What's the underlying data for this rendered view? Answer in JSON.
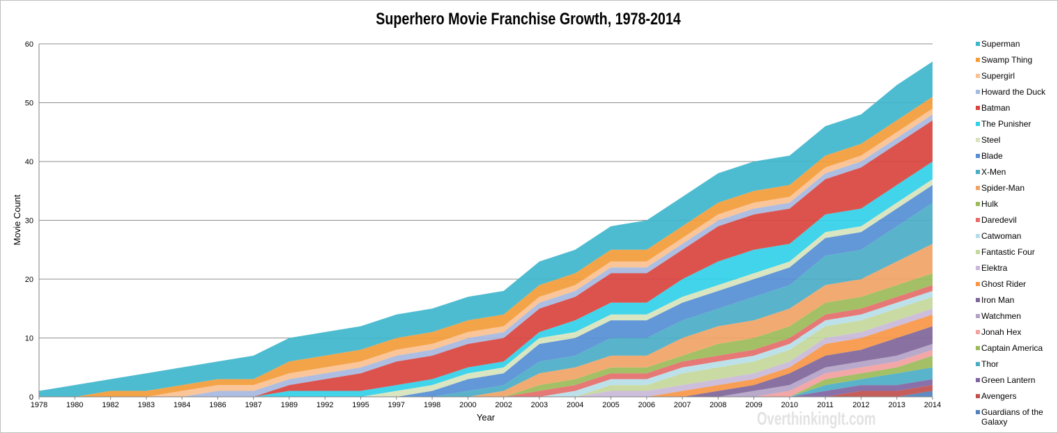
{
  "chart_data": {
    "type": "area",
    "stacked": true,
    "title": "Superhero Movie Franchise Growth, 1978-2014",
    "xlabel": "Year",
    "ylabel": "Movie Count",
    "ylim": [
      0,
      60
    ],
    "yticks": [
      "0",
      "10",
      "20",
      "30",
      "40",
      "50",
      "60"
    ],
    "grid": "horizontal",
    "legend_position": "right",
    "categories": [
      "1978",
      "1980",
      "1982",
      "1983",
      "1984",
      "1986",
      "1987",
      "1989",
      "1992",
      "1995",
      "1997",
      "1998",
      "2000",
      "2002",
      "2003",
      "2004",
      "2005",
      "2006",
      "2007",
      "2008",
      "2009",
      "2010",
      "2011",
      "2012",
      "2013",
      "2014"
    ],
    "series": [
      {
        "name": "Guardians of the Galaxy",
        "color": "#4f81bd",
        "values": [
          0,
          0,
          0,
          0,
          0,
          0,
          0,
          0,
          0,
          0,
          0,
          0,
          0,
          0,
          0,
          0,
          0,
          0,
          0,
          0,
          0,
          0,
          0,
          0,
          0,
          1
        ]
      },
      {
        "name": "Avengers",
        "color": "#c0504d",
        "values": [
          0,
          0,
          0,
          0,
          0,
          0,
          0,
          0,
          0,
          0,
          0,
          0,
          0,
          0,
          0,
          0,
          0,
          0,
          0,
          0,
          0,
          0,
          0,
          1,
          1,
          1
        ]
      },
      {
        "name": "Green Lantern",
        "color": "#8064a2",
        "values": [
          0,
          0,
          0,
          0,
          0,
          0,
          0,
          0,
          0,
          0,
          0,
          0,
          0,
          0,
          0,
          0,
          0,
          0,
          0,
          0,
          0,
          0,
          1,
          1,
          1,
          1
        ]
      },
      {
        "name": "Thor",
        "color": "#4bacc6",
        "values": [
          0,
          0,
          0,
          0,
          0,
          0,
          0,
          0,
          0,
          0,
          0,
          0,
          0,
          0,
          0,
          0,
          0,
          0,
          0,
          0,
          0,
          0,
          1,
          1,
          2,
          2
        ]
      },
      {
        "name": "Captain America",
        "color": "#9bbb59",
        "values": [
          0,
          0,
          0,
          0,
          0,
          0,
          0,
          0,
          0,
          0,
          0,
          0,
          0,
          0,
          0,
          0,
          0,
          0,
          0,
          0,
          0,
          0,
          1,
          1,
          1,
          2
        ]
      },
      {
        "name": "Jonah Hex",
        "color": "#f2a0a0",
        "values": [
          0,
          0,
          0,
          0,
          0,
          0,
          0,
          0,
          0,
          0,
          0,
          0,
          0,
          0,
          0,
          0,
          0,
          0,
          0,
          0,
          0,
          1,
          1,
          1,
          1,
          1
        ]
      },
      {
        "name": "Watchmen",
        "color": "#b3a2c7",
        "values": [
          0,
          0,
          0,
          0,
          0,
          0,
          0,
          0,
          0,
          0,
          0,
          0,
          0,
          0,
          0,
          0,
          0,
          0,
          0,
          0,
          1,
          1,
          1,
          1,
          1,
          1
        ]
      },
      {
        "name": "Iron Man",
        "color": "#7f6699",
        "values": [
          0,
          0,
          0,
          0,
          0,
          0,
          0,
          0,
          0,
          0,
          0,
          0,
          0,
          0,
          0,
          0,
          0,
          0,
          0,
          1,
          1,
          2,
          2,
          2,
          3,
          3
        ]
      },
      {
        "name": "Ghost Rider",
        "color": "#f79646",
        "values": [
          0,
          0,
          0,
          0,
          0,
          0,
          0,
          0,
          0,
          0,
          0,
          0,
          0,
          0,
          0,
          0,
          0,
          0,
          1,
          1,
          1,
          1,
          2,
          2,
          2,
          2
        ]
      },
      {
        "name": "Elektra",
        "color": "#c9b8d9",
        "values": [
          0,
          0,
          0,
          0,
          0,
          0,
          0,
          0,
          0,
          0,
          0,
          0,
          0,
          0,
          0,
          0,
          1,
          1,
          1,
          1,
          1,
          1,
          1,
          1,
          1,
          1
        ]
      },
      {
        "name": "Fantastic Four",
        "color": "#c4d79b",
        "values": [
          0,
          0,
          0,
          0,
          0,
          0,
          0,
          0,
          0,
          0,
          0,
          0,
          0,
          0,
          0,
          0,
          1,
          1,
          2,
          2,
          2,
          2,
          2,
          2,
          2,
          2
        ]
      },
      {
        "name": "Catwoman",
        "color": "#b7dee8",
        "values": [
          0,
          0,
          0,
          0,
          0,
          0,
          0,
          0,
          0,
          0,
          0,
          0,
          0,
          0,
          0,
          1,
          1,
          1,
          1,
          1,
          1,
          1,
          1,
          1,
          1,
          1
        ]
      },
      {
        "name": "Daredevil",
        "color": "#e46c6a",
        "values": [
          0,
          0,
          0,
          0,
          0,
          0,
          0,
          0,
          0,
          0,
          0,
          0,
          0,
          0,
          1,
          1,
          1,
          1,
          1,
          1,
          1,
          1,
          1,
          1,
          1,
          1
        ]
      },
      {
        "name": "Hulk",
        "color": "#9bbb59",
        "values": [
          0,
          0,
          0,
          0,
          0,
          0,
          0,
          0,
          0,
          0,
          0,
          0,
          0,
          0,
          1,
          1,
          1,
          1,
          1,
          2,
          2,
          2,
          2,
          2,
          2,
          2
        ]
      },
      {
        "name": "Spider-Man",
        "color": "#f0a466",
        "values": [
          0,
          0,
          0,
          0,
          0,
          0,
          0,
          0,
          0,
          0,
          0,
          0,
          0,
          1,
          2,
          2,
          2,
          2,
          3,
          3,
          3,
          3,
          3,
          3,
          4,
          5
        ]
      },
      {
        "name": "X-Men",
        "color": "#4bacc6",
        "values": [
          0,
          0,
          0,
          0,
          0,
          0,
          0,
          0,
          0,
          0,
          0,
          0,
          1,
          1,
          2,
          2,
          3,
          3,
          3,
          3,
          4,
          4,
          5,
          5,
          6,
          7
        ]
      },
      {
        "name": "Blade",
        "color": "#558ed5",
        "values": [
          0,
          0,
          0,
          0,
          0,
          0,
          0,
          0,
          0,
          0,
          0,
          1,
          2,
          2,
          3,
          3,
          3,
          3,
          3,
          3,
          3,
          3,
          3,
          3,
          3,
          3
        ]
      },
      {
        "name": "Steel",
        "color": "#d7e4bd",
        "values": [
          0,
          0,
          0,
          0,
          0,
          0,
          0,
          0,
          0,
          0,
          1,
          1,
          1,
          1,
          1,
          1,
          1,
          1,
          1,
          1,
          1,
          1,
          1,
          1,
          1,
          1
        ]
      },
      {
        "name": "The Punisher",
        "color": "#31d0e8",
        "values": [
          0,
          0,
          0,
          0,
          0,
          0,
          0,
          1,
          1,
          1,
          1,
          1,
          1,
          1,
          1,
          2,
          2,
          2,
          3,
          4,
          4,
          3,
          3,
          3,
          3,
          3
        ]
      },
      {
        "name": "Batman",
        "color": "#d9443f",
        "values": [
          0,
          0,
          0,
          0,
          0,
          0,
          0,
          1,
          2,
          3,
          4,
          4,
          4,
          4,
          4,
          4,
          5,
          5,
          5,
          6,
          6,
          6,
          6,
          7,
          7,
          7
        ]
      },
      {
        "name": "Howard the Duck",
        "color": "#a6b9e0",
        "values": [
          0,
          0,
          0,
          0,
          0,
          1,
          1,
          1,
          1,
          1,
          1,
          1,
          1,
          1,
          1,
          1,
          1,
          1,
          1,
          1,
          1,
          1,
          1,
          1,
          1,
          1
        ]
      },
      {
        "name": "Supergirl",
        "color": "#fac090",
        "values": [
          0,
          0,
          0,
          0,
          1,
          1,
          1,
          1,
          1,
          1,
          1,
          1,
          1,
          1,
          1,
          1,
          1,
          1,
          1,
          1,
          1,
          1,
          1,
          1,
          1,
          1
        ]
      },
      {
        "name": "Swamp Thing",
        "color": "#f39c38",
        "values": [
          0,
          0,
          1,
          1,
          1,
          1,
          1,
          2,
          2,
          2,
          2,
          2,
          2,
          2,
          2,
          2,
          2,
          2,
          2,
          2,
          2,
          2,
          2,
          2,
          2,
          2
        ]
      },
      {
        "name": "Superman",
        "color": "#3fb6cc",
        "values": [
          1,
          2,
          2,
          3,
          3,
          3,
          4,
          4,
          4,
          4,
          4,
          4,
          4,
          4,
          4,
          4,
          4,
          5,
          5,
          5,
          5,
          5,
          5,
          5,
          6,
          6
        ]
      }
    ],
    "legend_order": [
      "Superman",
      "Swamp Thing",
      "Supergirl",
      "Howard the Duck",
      "Batman",
      "The Punisher",
      "Steel",
      "Blade",
      "X-Men",
      "Spider-Man",
      "Hulk",
      "Daredevil",
      "Catwoman",
      "Fantastic Four",
      "Elektra",
      "Ghost Rider",
      "Iron Man",
      "Watchmen",
      "Jonah Hex",
      "Captain America",
      "Thor",
      "Green Lantern",
      "Avengers",
      "Guardians of the Galaxy"
    ],
    "watermark": "OverthinkingIt.com"
  }
}
